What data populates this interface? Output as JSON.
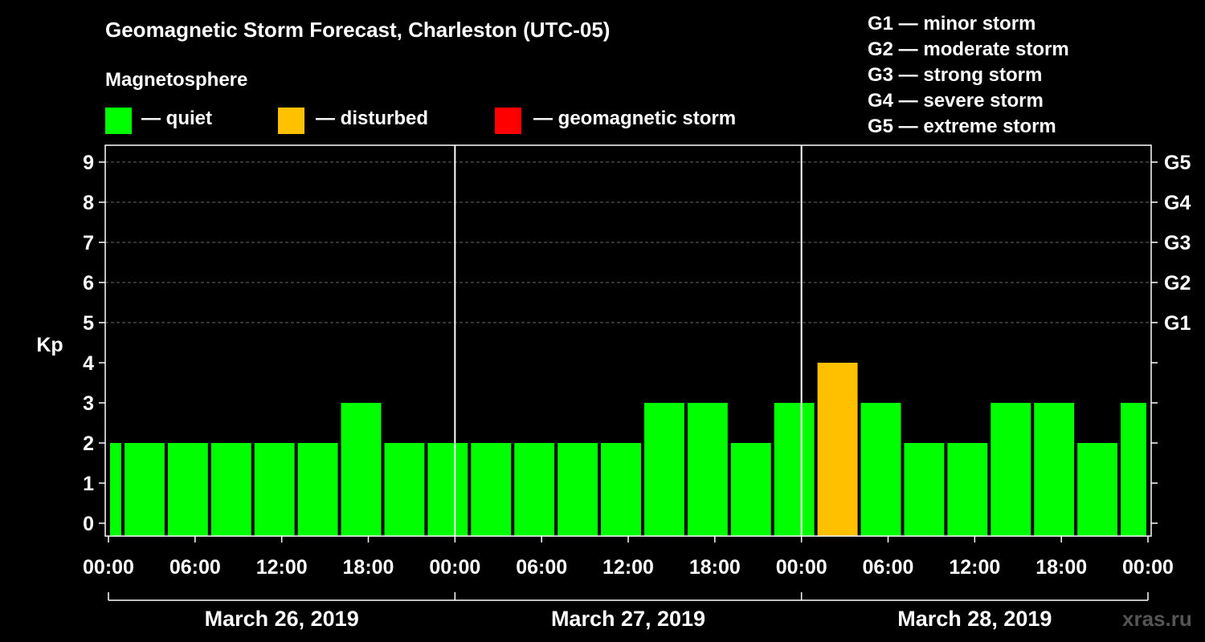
{
  "title": "Geomagnetic Storm Forecast, Charleston (UTC-05)",
  "magnetosphere_label": "Magnetosphere",
  "legend": [
    {
      "label": "— quiet",
      "color": "#00ff00"
    },
    {
      "label": "— disturbed",
      "color": "#ffc000"
    },
    {
      "label": "— geomagnetic storm",
      "color": "#ff0000"
    }
  ],
  "storm_scale": [
    "G1 — minor storm",
    "G2 — moderate storm",
    "G3 — strong storm",
    "G4 — severe storm",
    "G5 — extreme storm"
  ],
  "watermark": "xras.ru",
  "chart_data": {
    "type": "bar",
    "ylabel": "Kp",
    "ylim": [
      0,
      9
    ],
    "yticks": [
      0,
      1,
      2,
      3,
      4,
      5,
      6,
      7,
      8,
      9
    ],
    "right_ticks": [
      {
        "kp": 5,
        "label": "G1"
      },
      {
        "kp": 6,
        "label": "G2"
      },
      {
        "kp": 7,
        "label": "G3"
      },
      {
        "kp": 8,
        "label": "G4"
      },
      {
        "kp": 9,
        "label": "G5"
      }
    ],
    "x_hours_range": [
      0,
      72
    ],
    "xtick_labels": [
      "00:00",
      "06:00",
      "12:00",
      "18:00",
      "00:00",
      "06:00",
      "12:00",
      "18:00",
      "00:00",
      "06:00",
      "12:00",
      "18:00",
      "00:00"
    ],
    "days": [
      "March 26, 2019",
      "March 27, 2019",
      "March 28, 2019"
    ],
    "bars": [
      {
        "start": 0,
        "end": 1,
        "kp": 2,
        "color": "#00ff00"
      },
      {
        "start": 1,
        "end": 4,
        "kp": 2,
        "color": "#00ff00"
      },
      {
        "start": 4,
        "end": 7,
        "kp": 2,
        "color": "#00ff00"
      },
      {
        "start": 7,
        "end": 10,
        "kp": 2,
        "color": "#00ff00"
      },
      {
        "start": 10,
        "end": 13,
        "kp": 2,
        "color": "#00ff00"
      },
      {
        "start": 13,
        "end": 16,
        "kp": 2,
        "color": "#00ff00"
      },
      {
        "start": 16,
        "end": 19,
        "kp": 3,
        "color": "#00ff00"
      },
      {
        "start": 19,
        "end": 22,
        "kp": 2,
        "color": "#00ff00"
      },
      {
        "start": 22,
        "end": 25,
        "kp": 2,
        "color": "#00ff00"
      },
      {
        "start": 25,
        "end": 28,
        "kp": 2,
        "color": "#00ff00"
      },
      {
        "start": 28,
        "end": 31,
        "kp": 2,
        "color": "#00ff00"
      },
      {
        "start": 31,
        "end": 34,
        "kp": 2,
        "color": "#00ff00"
      },
      {
        "start": 34,
        "end": 37,
        "kp": 2,
        "color": "#00ff00"
      },
      {
        "start": 37,
        "end": 40,
        "kp": 3,
        "color": "#00ff00"
      },
      {
        "start": 40,
        "end": 43,
        "kp": 3,
        "color": "#00ff00"
      },
      {
        "start": 43,
        "end": 46,
        "kp": 2,
        "color": "#00ff00"
      },
      {
        "start": 46,
        "end": 49,
        "kp": 3,
        "color": "#00ff00"
      },
      {
        "start": 49,
        "end": 52,
        "kp": 4,
        "color": "#ffc000"
      },
      {
        "start": 52,
        "end": 55,
        "kp": 3,
        "color": "#00ff00"
      },
      {
        "start": 55,
        "end": 58,
        "kp": 2,
        "color": "#00ff00"
      },
      {
        "start": 58,
        "end": 61,
        "kp": 2,
        "color": "#00ff00"
      },
      {
        "start": 61,
        "end": 64,
        "kp": 3,
        "color": "#00ff00"
      },
      {
        "start": 64,
        "end": 67,
        "kp": 3,
        "color": "#00ff00"
      },
      {
        "start": 67,
        "end": 70,
        "kp": 2,
        "color": "#00ff00"
      },
      {
        "start": 70,
        "end": 72,
        "kp": 3,
        "color": "#00ff00"
      }
    ]
  }
}
